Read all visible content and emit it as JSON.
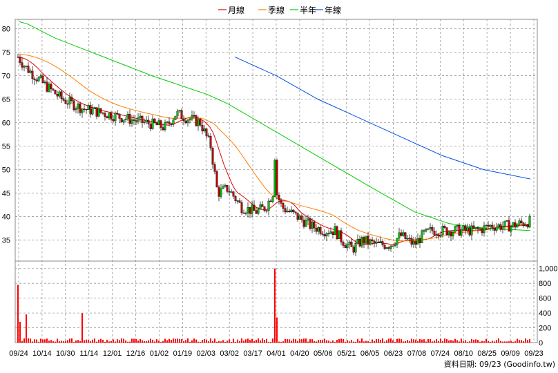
{
  "chart_data": {
    "type": "candlestick",
    "legend": [
      {
        "name": "月線",
        "color": "#e00000"
      },
      {
        "name": "季線",
        "color": "#ff7f00"
      },
      {
        "name": "半年",
        "color": "#00cc00"
      },
      {
        "name": "年線",
        "color": "#0050e0"
      }
    ],
    "x_tick_labels": [
      "09/24",
      "10/14",
      "10/30",
      "11/14",
      "12/01",
      "12/16",
      "01/02",
      "01/19",
      "02/03",
      "03/02",
      "03/17",
      "04/01",
      "04/20",
      "05/06",
      "05/21",
      "06/05",
      "06/23",
      "07/08",
      "07/24",
      "08/10",
      "08/25",
      "09/09",
      "09/23"
    ],
    "price_axis": {
      "ticks": [
        35,
        40,
        45,
        50,
        55,
        60,
        65,
        70,
        75,
        80
      ],
      "range": [
        30.5,
        82
      ]
    },
    "volume_axis": {
      "ticks": [
        "0",
        "200",
        "400",
        "600",
        "800",
        "1,000"
      ],
      "range": [
        0,
        1100
      ]
    },
    "candle_color_up": "#00c000",
    "candle_color_down": "#c00000",
    "volume_color": "#ff0000",
    "credit": "資料日期: 09/23  (Goodinfo.tw)"
  }
}
